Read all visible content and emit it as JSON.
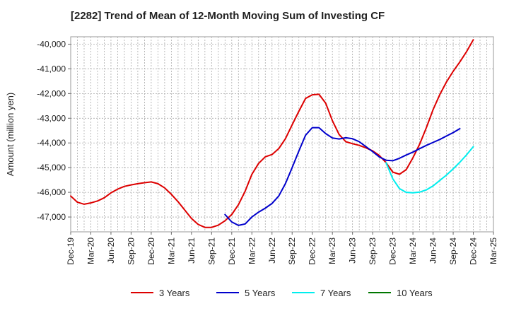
{
  "chart_data": {
    "type": "line",
    "title": "[2282]  Trend of Mean of 12-Month Moving Sum of Investing CF",
    "xlabel": "",
    "ylabel": "Amount (million yen)",
    "ylim": [
      -47600,
      -39700
    ],
    "yticks": [
      -47000,
      -46000,
      -45000,
      -44000,
      -43000,
      -42000,
      -41000,
      -40000
    ],
    "ytick_labels": [
      "-47,000",
      "-46,000",
      "-45,000",
      "-44,000",
      "-43,000",
      "-42,000",
      "-41,000",
      "-40,000"
    ],
    "xtick_labels": [
      "Dec-19",
      "Mar-20",
      "Jun-20",
      "Sep-20",
      "Dec-20",
      "Mar-21",
      "Jun-21",
      "Sep-21",
      "Dec-21",
      "Mar-22",
      "Jun-22",
      "Sep-22",
      "Dec-22",
      "Mar-23",
      "Jun-23",
      "Sep-23",
      "Dec-23",
      "Mar-24",
      "Jun-24",
      "Sep-24",
      "Dec-24",
      "Mar-25"
    ],
    "x_months": [
      "2019-12",
      "2020-01",
      "2020-02",
      "2020-03",
      "2020-04",
      "2020-05",
      "2020-06",
      "2020-07",
      "2020-08",
      "2020-09",
      "2020-10",
      "2020-11",
      "2020-12",
      "2021-01",
      "2021-02",
      "2021-03",
      "2021-04",
      "2021-05",
      "2021-06",
      "2021-07",
      "2021-08",
      "2021-09",
      "2021-10",
      "2021-11",
      "2021-12",
      "2022-01",
      "2022-02",
      "2022-03",
      "2022-04",
      "2022-05",
      "2022-06",
      "2022-07",
      "2022-08",
      "2022-09",
      "2022-10",
      "2022-11",
      "2022-12",
      "2023-01",
      "2023-02",
      "2023-03",
      "2023-04",
      "2023-05",
      "2023-06",
      "2023-07",
      "2023-08",
      "2023-09",
      "2023-10",
      "2023-11",
      "2023-12",
      "2024-01",
      "2024-02",
      "2024-03",
      "2024-04",
      "2024-05",
      "2024-06",
      "2024-07",
      "2024-08",
      "2024-09",
      "2024-10",
      "2024-11",
      "2024-12"
    ],
    "grid": true,
    "legend_position": "bottom",
    "series": [
      {
        "name": "3 Years",
        "color": "#dd0000",
        "start_index": 0,
        "values": [
          -46150,
          -46400,
          -46480,
          -46430,
          -46350,
          -46220,
          -46020,
          -45870,
          -45760,
          -45700,
          -45650,
          -45610,
          -45580,
          -45650,
          -45820,
          -46080,
          -46380,
          -46720,
          -47060,
          -47300,
          -47420,
          -47420,
          -47330,
          -47150,
          -46900,
          -46500,
          -45950,
          -45270,
          -44830,
          -44560,
          -44470,
          -44230,
          -43830,
          -43270,
          -42720,
          -42200,
          -42050,
          -42030,
          -42390,
          -43100,
          -43660,
          -43950,
          -44030,
          -44100,
          -44200,
          -44320,
          -44510,
          -44800,
          -45180,
          -45270,
          -45080,
          -44600,
          -44050,
          -43380,
          -42650,
          -42040,
          -41530,
          -41100,
          -40720,
          -40300,
          -39820
        ]
      },
      {
        "name": "5 Years",
        "color": "#0000cc",
        "start_index": 23,
        "values": [
          -46900,
          -47200,
          -47340,
          -47280,
          -47000,
          -46800,
          -46640,
          -46450,
          -46150,
          -45650,
          -45000,
          -44330,
          -43690,
          -43380,
          -43380,
          -43620,
          -43800,
          -43840,
          -43790,
          -43830,
          -43950,
          -44150,
          -44350,
          -44570,
          -44700,
          -44720,
          -44620,
          -44490,
          -44370,
          -44230,
          -44100,
          -43980,
          -43860,
          -43720,
          -43580,
          -43420
        ]
      },
      {
        "name": "7 Years",
        "color": "#00eeee",
        "start_index": 47,
        "values": [
          -44800,
          -45450,
          -45850,
          -46000,
          -46020,
          -45990,
          -45900,
          -45740,
          -45520,
          -45300,
          -45050,
          -44780,
          -44480,
          -44150
        ]
      },
      {
        "name": "10 Years",
        "color": "#007700",
        "start_index": 0,
        "values": []
      }
    ]
  }
}
